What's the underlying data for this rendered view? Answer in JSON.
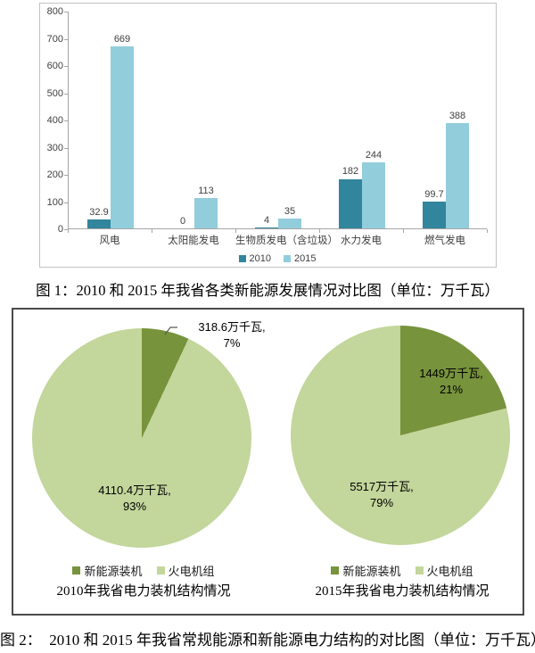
{
  "captions": {
    "figure1": "图 1：2010 和 2015 年我省各类新能源发展情况对比图（单位：万千瓦）",
    "figure2": "图 2：  2010 和 2015 年我省常规能源和新能源电力结构的对比图（单位：万千瓦）"
  },
  "chart_data": [
    {
      "type": "bar",
      "title": "",
      "xlabel": "",
      "ylabel": "",
      "unit": "万千瓦",
      "categories": [
        "风电",
        "太阳能发电",
        "生物质发电（含垃圾）",
        "水力发电",
        "燃气发电"
      ],
      "series": [
        {
          "name": "2010",
          "color": "#31859C",
          "values": [
            32.9,
            0,
            4,
            182,
            99.7
          ],
          "labels": [
            "32.9",
            "0",
            "4",
            "182",
            "99.7"
          ]
        },
        {
          "name": "2015",
          "color": "#92CDDC",
          "values": [
            669,
            113,
            35,
            244,
            388
          ],
          "labels": [
            "669",
            "113",
            "35",
            "244",
            "388"
          ]
        }
      ],
      "ylim": [
        0,
        800
      ],
      "yticks": [
        0,
        100,
        200,
        300,
        400,
        500,
        600,
        700,
        800
      ],
      "grid": false,
      "legend_position": "bottom"
    },
    {
      "type": "pie",
      "title": "2010年我省电力装机结构情况",
      "legend_position": "bottom",
      "slices": [
        {
          "label": "新能源装机",
          "value": 318.6,
          "percent": 7,
          "color": "#77933C",
          "data_label_line1": "318.6万千瓦,",
          "data_label_line2": "7%"
        },
        {
          "label": "火电机组",
          "value": 4110.4,
          "percent": 93,
          "color": "#C3D69B",
          "data_label_line1": "4110.4万千瓦,",
          "data_label_line2": "93%"
        }
      ]
    },
    {
      "type": "pie",
      "title": "2015年我省电力装机结构情况",
      "legend_position": "bottom",
      "slices": [
        {
          "label": "新能源装机",
          "value": 1449,
          "percent": 21,
          "color": "#77933C",
          "data_label_line1": "1449万千瓦,",
          "data_label_line2": "21%"
        },
        {
          "label": "火电机组",
          "value": 5517,
          "percent": 79,
          "color": "#C3D69B",
          "data_label_line1": "5517万千瓦,",
          "data_label_line2": "79%"
        }
      ]
    }
  ]
}
